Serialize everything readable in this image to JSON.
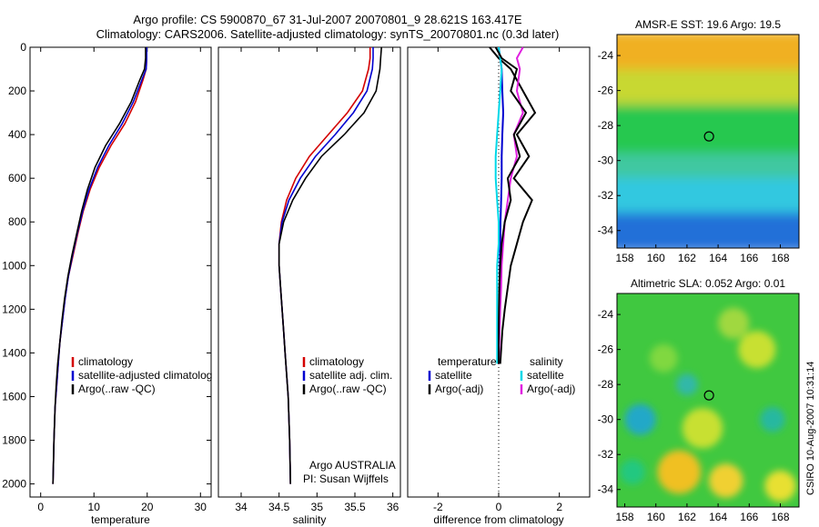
{
  "header": {
    "line1": "Argo profile: CS 5900870_67 31-Jul-2007 20070801_9 28.621S 163.417E",
    "line2": "Climatology: CARS2006. Satellite-adjusted climatology: synTS_20070801.nc (0.3d later)"
  },
  "credit": "CSIRO 10-Aug-2007 10:31:14",
  "attribution": {
    "line1": "Argo AUSTRALIA",
    "line2": "PI: Susan Wijffels"
  },
  "colors": {
    "climatology": "#d40000",
    "satellite": "#0000d0",
    "argo": "#000000",
    "sat_diff": "#00d8e8",
    "argo_diff_sal": "#e020e0"
  },
  "chart_data": [
    {
      "type": "line",
      "xlabel": "temperature",
      "ylabel": "",
      "xlim": [
        -2,
        32
      ],
      "ylim": [
        0,
        2060
      ],
      "y_reversed": true,
      "xticks": [
        0,
        10,
        20,
        30
      ],
      "yticks": [
        0,
        200,
        400,
        600,
        800,
        1000,
        1200,
        1400,
        1600,
        1800,
        2000
      ],
      "legend": [
        "climatology",
        "satellite-adjusted climatolog",
        "Argo(..raw -QC)"
      ],
      "series": [
        {
          "name": "climatology",
          "color": "#d40000",
          "x": [
            19.9,
            19.9,
            19.8,
            19.2,
            17.8,
            15.8,
            13.2,
            11.0,
            9.3,
            8.0,
            7.0,
            6.1,
            5.2,
            4.6,
            4.1,
            3.6,
            3.3,
            3.0,
            2.7,
            2.5,
            2.3
          ],
          "y": [
            0,
            50,
            100,
            150,
            250,
            350,
            450,
            550,
            650,
            750,
            850,
            950,
            1050,
            1150,
            1250,
            1350,
            1450,
            1550,
            1650,
            1800,
            2000
          ]
        },
        {
          "name": "satellite-adjusted climatolog",
          "color": "#0000d0",
          "x": [
            19.9,
            19.9,
            19.8,
            19.0,
            17.4,
            15.3,
            12.8,
            10.7,
            9.1,
            7.9,
            6.9,
            6.0,
            5.2,
            4.6,
            4.1,
            3.6,
            3.3,
            3.0,
            2.7,
            2.5,
            2.3
          ],
          "y": [
            0,
            50,
            100,
            150,
            250,
            350,
            450,
            550,
            650,
            750,
            850,
            950,
            1050,
            1150,
            1250,
            1350,
            1450,
            1550,
            1650,
            1800,
            2000
          ]
        },
        {
          "name": "Argo(..raw -QC)",
          "color": "#000000",
          "x": [
            19.7,
            19.7,
            19.5,
            18.6,
            17.0,
            14.8,
            12.2,
            10.2,
            8.8,
            7.7,
            6.8,
            5.9,
            5.1,
            4.5,
            4.0,
            3.6,
            3.2,
            2.9,
            2.7,
            2.5,
            2.3
          ],
          "y": [
            0,
            50,
            100,
            150,
            250,
            350,
            450,
            550,
            650,
            750,
            850,
            950,
            1050,
            1150,
            1250,
            1350,
            1450,
            1550,
            1650,
            1800,
            2000
          ]
        }
      ]
    },
    {
      "type": "line",
      "xlabel": "salinity",
      "ylabel": "",
      "xlim": [
        33.7,
        36.1
      ],
      "ylim": [
        0,
        2060
      ],
      "y_reversed": true,
      "xticks": [
        34,
        34.5,
        35,
        35.5,
        36
      ],
      "legend": [
        "climatology",
        "satellite adj. clim.",
        "Argo(..raw -QC)"
      ],
      "series": [
        {
          "name": "climatology",
          "color": "#d40000",
          "x": [
            35.7,
            35.7,
            35.68,
            35.6,
            35.4,
            35.15,
            34.9,
            34.72,
            34.6,
            34.53,
            34.5,
            34.5,
            34.52,
            34.54,
            34.56,
            34.58,
            34.6,
            34.62,
            34.64,
            34.65
          ],
          "y": [
            0,
            50,
            100,
            200,
            300,
            400,
            500,
            600,
            700,
            800,
            900,
            1000,
            1100,
            1200,
            1300,
            1400,
            1500,
            1600,
            1800,
            2000
          ]
        },
        {
          "name": "satellite adj. clim.",
          "color": "#0000d0",
          "x": [
            35.74,
            35.74,
            35.73,
            35.66,
            35.48,
            35.24,
            34.98,
            34.78,
            34.63,
            34.54,
            34.5,
            34.5,
            34.52,
            34.54,
            34.56,
            34.58,
            34.6,
            34.62,
            34.64,
            34.65
          ],
          "y": [
            0,
            50,
            100,
            200,
            300,
            400,
            500,
            600,
            700,
            800,
            900,
            1000,
            1100,
            1200,
            1300,
            1400,
            1500,
            1600,
            1800,
            2000
          ]
        },
        {
          "name": "Argo(..raw -QC)",
          "color": "#000000",
          "x": [
            35.85,
            35.84,
            35.83,
            35.78,
            35.62,
            35.36,
            35.06,
            34.85,
            34.68,
            34.56,
            34.5,
            34.5,
            34.52,
            34.54,
            34.56,
            34.58,
            34.6,
            34.62,
            34.64,
            34.65
          ],
          "y": [
            0,
            50,
            100,
            200,
            300,
            400,
            500,
            600,
            700,
            800,
            900,
            1000,
            1100,
            1200,
            1300,
            1400,
            1500,
            1600,
            1800,
            2000
          ]
        }
      ]
    },
    {
      "type": "line",
      "xlabel": "difference from climatology",
      "ylabel": "",
      "xlim": [
        -3,
        3
      ],
      "ylim": [
        0,
        2060
      ],
      "y_reversed": true,
      "xticks": [
        -2,
        0,
        2
      ],
      "zero_line": "dotted",
      "legend_left": {
        "heading": "temperature",
        "items": [
          "satellite",
          "Argo(-adj)"
        ]
      },
      "legend_right": {
        "heading": "salinity",
        "items": [
          "satellite",
          "Argo(-adj)"
        ]
      },
      "series": [
        {
          "name": "temperature satellite",
          "color": "#0000d0",
          "x": [
            0.0,
            0.05,
            0.1,
            0.12,
            0.15,
            0.12,
            0.1,
            0.1,
            0.08,
            0.06,
            0.05,
            0.04,
            0.03,
            0.02,
            0.01,
            0.0
          ],
          "y": [
            0,
            50,
            100,
            200,
            300,
            400,
            500,
            600,
            700,
            800,
            900,
            1000,
            1100,
            1200,
            1300,
            1450
          ]
        },
        {
          "name": "temperature Argo(-adj)",
          "color": "#000000",
          "x": [
            -0.3,
            0.0,
            0.4,
            0.8,
            1.2,
            0.6,
            1.0,
            0.5,
            1.1,
            0.8,
            0.6,
            0.4,
            0.3,
            0.2,
            0.12,
            0.05
          ],
          "y": [
            0,
            50,
            100,
            200,
            300,
            400,
            500,
            600,
            700,
            800,
            900,
            1000,
            1100,
            1200,
            1300,
            1450
          ]
        },
        {
          "name": "salinity satellite",
          "color": "#00d8e8",
          "x": [
            0.0,
            0.05,
            0.1,
            0.05,
            0.0,
            -0.05,
            -0.1,
            -0.1,
            -0.05,
            0.0,
            0.0,
            -0.05,
            -0.05,
            -0.05,
            -0.05,
            -0.05
          ],
          "y": [
            0,
            50,
            100,
            200,
            300,
            400,
            500,
            600,
            700,
            800,
            900,
            1000,
            1100,
            1200,
            1300,
            1450
          ]
        },
        {
          "name": "salinity Argo(-adj)",
          "color": "#e020e0",
          "x": [
            0.8,
            0.6,
            0.7,
            0.6,
            0.8,
            0.5,
            0.6,
            0.4,
            0.3,
            0.2,
            0.15,
            0.1,
            0.08,
            0.05,
            0.03,
            0.0
          ],
          "y": [
            0,
            50,
            100,
            200,
            300,
            400,
            500,
            600,
            700,
            800,
            900,
            1000,
            1100,
            1200,
            1300,
            1450
          ]
        },
        {
          "name": "Argo(-adj) fine",
          "color": "#000000",
          "x": [
            -0.1,
            0.1,
            0.6,
            0.4,
            0.9,
            0.5,
            0.7,
            0.3,
            0.4,
            0.2,
            0.1,
            0.05,
            0.02,
            0.01,
            0.0,
            0.0
          ],
          "y": [
            0,
            50,
            100,
            200,
            300,
            400,
            500,
            600,
            700,
            800,
            900,
            1000,
            1100,
            1200,
            1300,
            1450
          ]
        }
      ]
    },
    {
      "type": "heatmap",
      "title": "AMSR-E SST: 19.6 Argo: 19.5",
      "xlim": [
        157.5,
        169.2
      ],
      "ylim": [
        -35,
        -22.8
      ],
      "xticks": [
        158,
        160,
        162,
        164,
        166,
        168
      ],
      "yticks": [
        -24,
        -26,
        -28,
        -30,
        -32,
        -34
      ],
      "marker": {
        "lon": 163.417,
        "lat": -28.621
      },
      "bands": [
        {
          "lat_top": -22.8,
          "lat_bottom": -25.0,
          "color": "#f0b020"
        },
        {
          "lat_top": -25.0,
          "lat_bottom": -27.0,
          "color": "#c8d830"
        },
        {
          "lat_top": -27.0,
          "lat_bottom": -29.8,
          "color": "#28c850"
        },
        {
          "lat_top": -29.8,
          "lat_bottom": -31.2,
          "color": "#40c8a0"
        },
        {
          "lat_top": -31.2,
          "lat_bottom": -33.2,
          "color": "#30c8e0"
        },
        {
          "lat_top": -33.2,
          "lat_bottom": -35.0,
          "color": "#2070d8"
        }
      ]
    },
    {
      "type": "heatmap",
      "title": "Altimetric SLA: 0.052 Argo: 0.01",
      "xlim": [
        157.5,
        169.2
      ],
      "ylim": [
        -35,
        -22.8
      ],
      "xticks": [
        158,
        160,
        162,
        164,
        166,
        168
      ],
      "yticks": [
        -24,
        -26,
        -28,
        -30,
        -32,
        -34
      ],
      "marker": {
        "lon": 163.417,
        "lat": -28.621
      },
      "background": "#40c840",
      "blobs": [
        {
          "lon": 159.0,
          "lat": -30.0,
          "r": 1.0,
          "color": "#20a8c8"
        },
        {
          "lon": 163.0,
          "lat": -30.5,
          "r": 1.3,
          "color": "#c8e030"
        },
        {
          "lon": 166.5,
          "lat": -26.0,
          "r": 1.2,
          "color": "#c8e030"
        },
        {
          "lon": 161.5,
          "lat": -33.0,
          "r": 1.4,
          "color": "#f0c020"
        },
        {
          "lon": 164.5,
          "lat": -33.5,
          "r": 1.1,
          "color": "#f0d030"
        },
        {
          "lon": 168.0,
          "lat": -33.8,
          "r": 1.0,
          "color": "#e8e030"
        },
        {
          "lon": 158.5,
          "lat": -33.0,
          "r": 0.8,
          "color": "#20c880"
        },
        {
          "lon": 160.5,
          "lat": -26.5,
          "r": 0.9,
          "color": "#80d840"
        },
        {
          "lon": 165.0,
          "lat": -24.5,
          "r": 1.0,
          "color": "#a0d840"
        },
        {
          "lon": 167.5,
          "lat": -30.0,
          "r": 0.8,
          "color": "#28b8a0"
        },
        {
          "lon": 162.0,
          "lat": -28.0,
          "r": 0.7,
          "color": "#30b8a8"
        }
      ]
    }
  ]
}
